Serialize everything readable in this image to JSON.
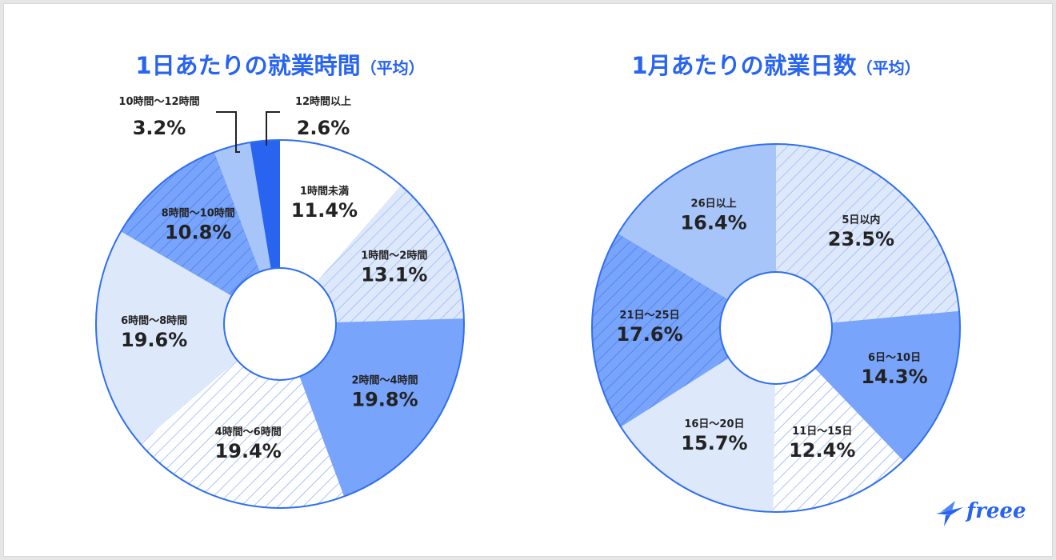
{
  "colors": {
    "accent": "#2864f0",
    "outline": "#2f6ff2",
    "white": "#ffffff",
    "pale": "#dde8fb",
    "pale_stripe": "#a9c3f6",
    "light": "#a8c5fa",
    "medium": "#78a4fb",
    "medium_stripe": "#5287f0",
    "dark": "#2864f0"
  },
  "logo": {
    "text": "freee",
    "icon": "bird-icon"
  },
  "chart_data": [
    {
      "type": "pie",
      "title": "1日あたりの就業時間",
      "title_suffix": "（平均）",
      "unit": "%",
      "categories": [
        "1時間未満",
        "1時間〜2時間",
        "2時間〜4時間",
        "4時間〜6時間",
        "6時間〜8時間",
        "8時間〜10時間",
        "10時間〜12時間",
        "12時間以上"
      ],
      "values": [
        11.4,
        13.1,
        19.8,
        19.4,
        19.6,
        10.8,
        3.2,
        2.6
      ],
      "value_labels": [
        "11.4%",
        "13.1%",
        "19.8%",
        "19.4%",
        "19.6%",
        "10.8%",
        "3.2%",
        "2.6%"
      ],
      "fills": [
        "white",
        "pale_striped",
        "medium",
        "white_striped",
        "pale",
        "medium_striped",
        "light",
        "dark"
      ],
      "label_style": [
        "inside",
        "inside",
        "inside",
        "inside",
        "inside",
        "inside",
        "callout",
        "callout"
      ]
    },
    {
      "type": "pie",
      "title": "1月あたりの就業日数",
      "title_suffix": "（平均）",
      "unit": "%",
      "categories": [
        "5日以内",
        "6日〜10日",
        "11日〜15日",
        "16日〜20日",
        "21日〜25日",
        "26日以上"
      ],
      "values": [
        23.5,
        14.3,
        12.4,
        15.7,
        17.6,
        16.4
      ],
      "value_labels": [
        "23.5%",
        "14.3%",
        "12.4%",
        "15.7%",
        "17.6%",
        "16.4%"
      ],
      "fills": [
        "pale_striped",
        "medium",
        "white_striped",
        "pale",
        "medium_striped",
        "light"
      ],
      "label_style": [
        "inside",
        "inside",
        "inside",
        "inside",
        "inside",
        "inside"
      ]
    }
  ]
}
